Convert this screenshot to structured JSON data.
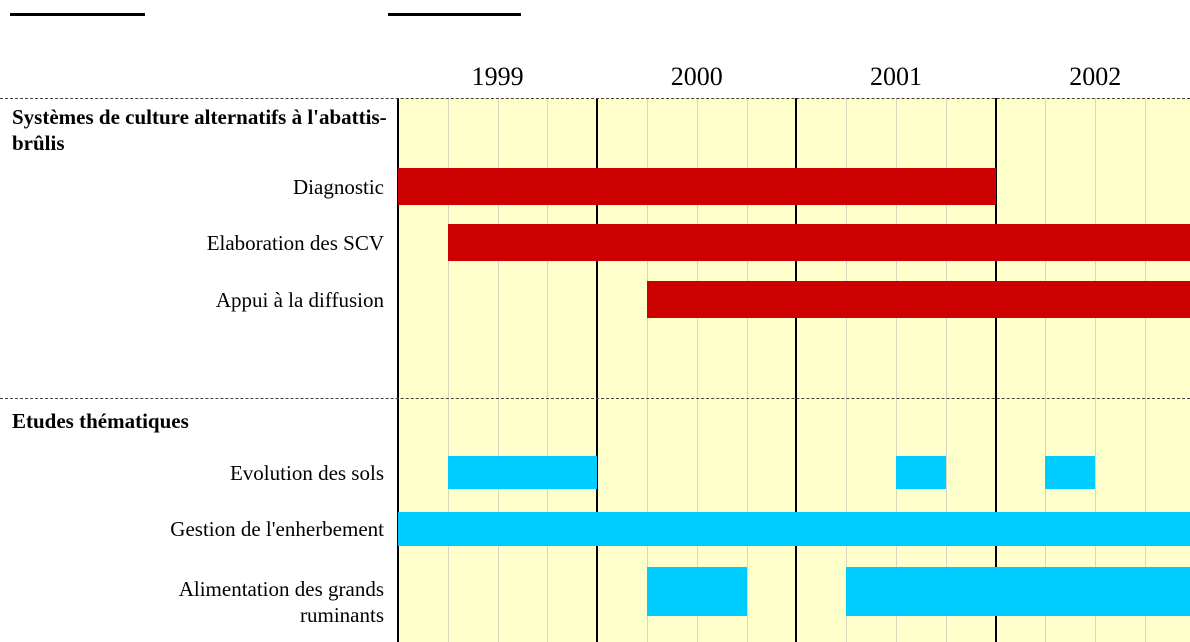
{
  "header": {
    "years": [
      "1999",
      "2000",
      "2001",
      "2002"
    ]
  },
  "sections": [
    {
      "title": "Systèmes de culture alternatifs à l'abattis-brûlis",
      "tasks": [
        {
          "label": "Diagnostic",
          "bars": [
            [
              0,
              12
            ]
          ]
        },
        {
          "label": "Elaboration des SCV",
          "bars": [
            [
              1,
              16
            ]
          ]
        },
        {
          "label": "Appui à la diffusion",
          "bars": [
            [
              5,
              16
            ]
          ]
        }
      ]
    },
    {
      "title": "Etudes thématiques",
      "tasks": [
        {
          "label": "Evolution des sols",
          "bars": [
            [
              1,
              4
            ],
            [
              10,
              11
            ],
            [
              13,
              14
            ]
          ]
        },
        {
          "label": "Gestion de l'enherbement",
          "bars": [
            [
              0,
              16
            ]
          ]
        },
        {
          "label": "Alimentation des grands ruminants",
          "bars": [
            [
              5,
              7
            ],
            [
              9,
              16
            ]
          ]
        }
      ]
    }
  ]
}
